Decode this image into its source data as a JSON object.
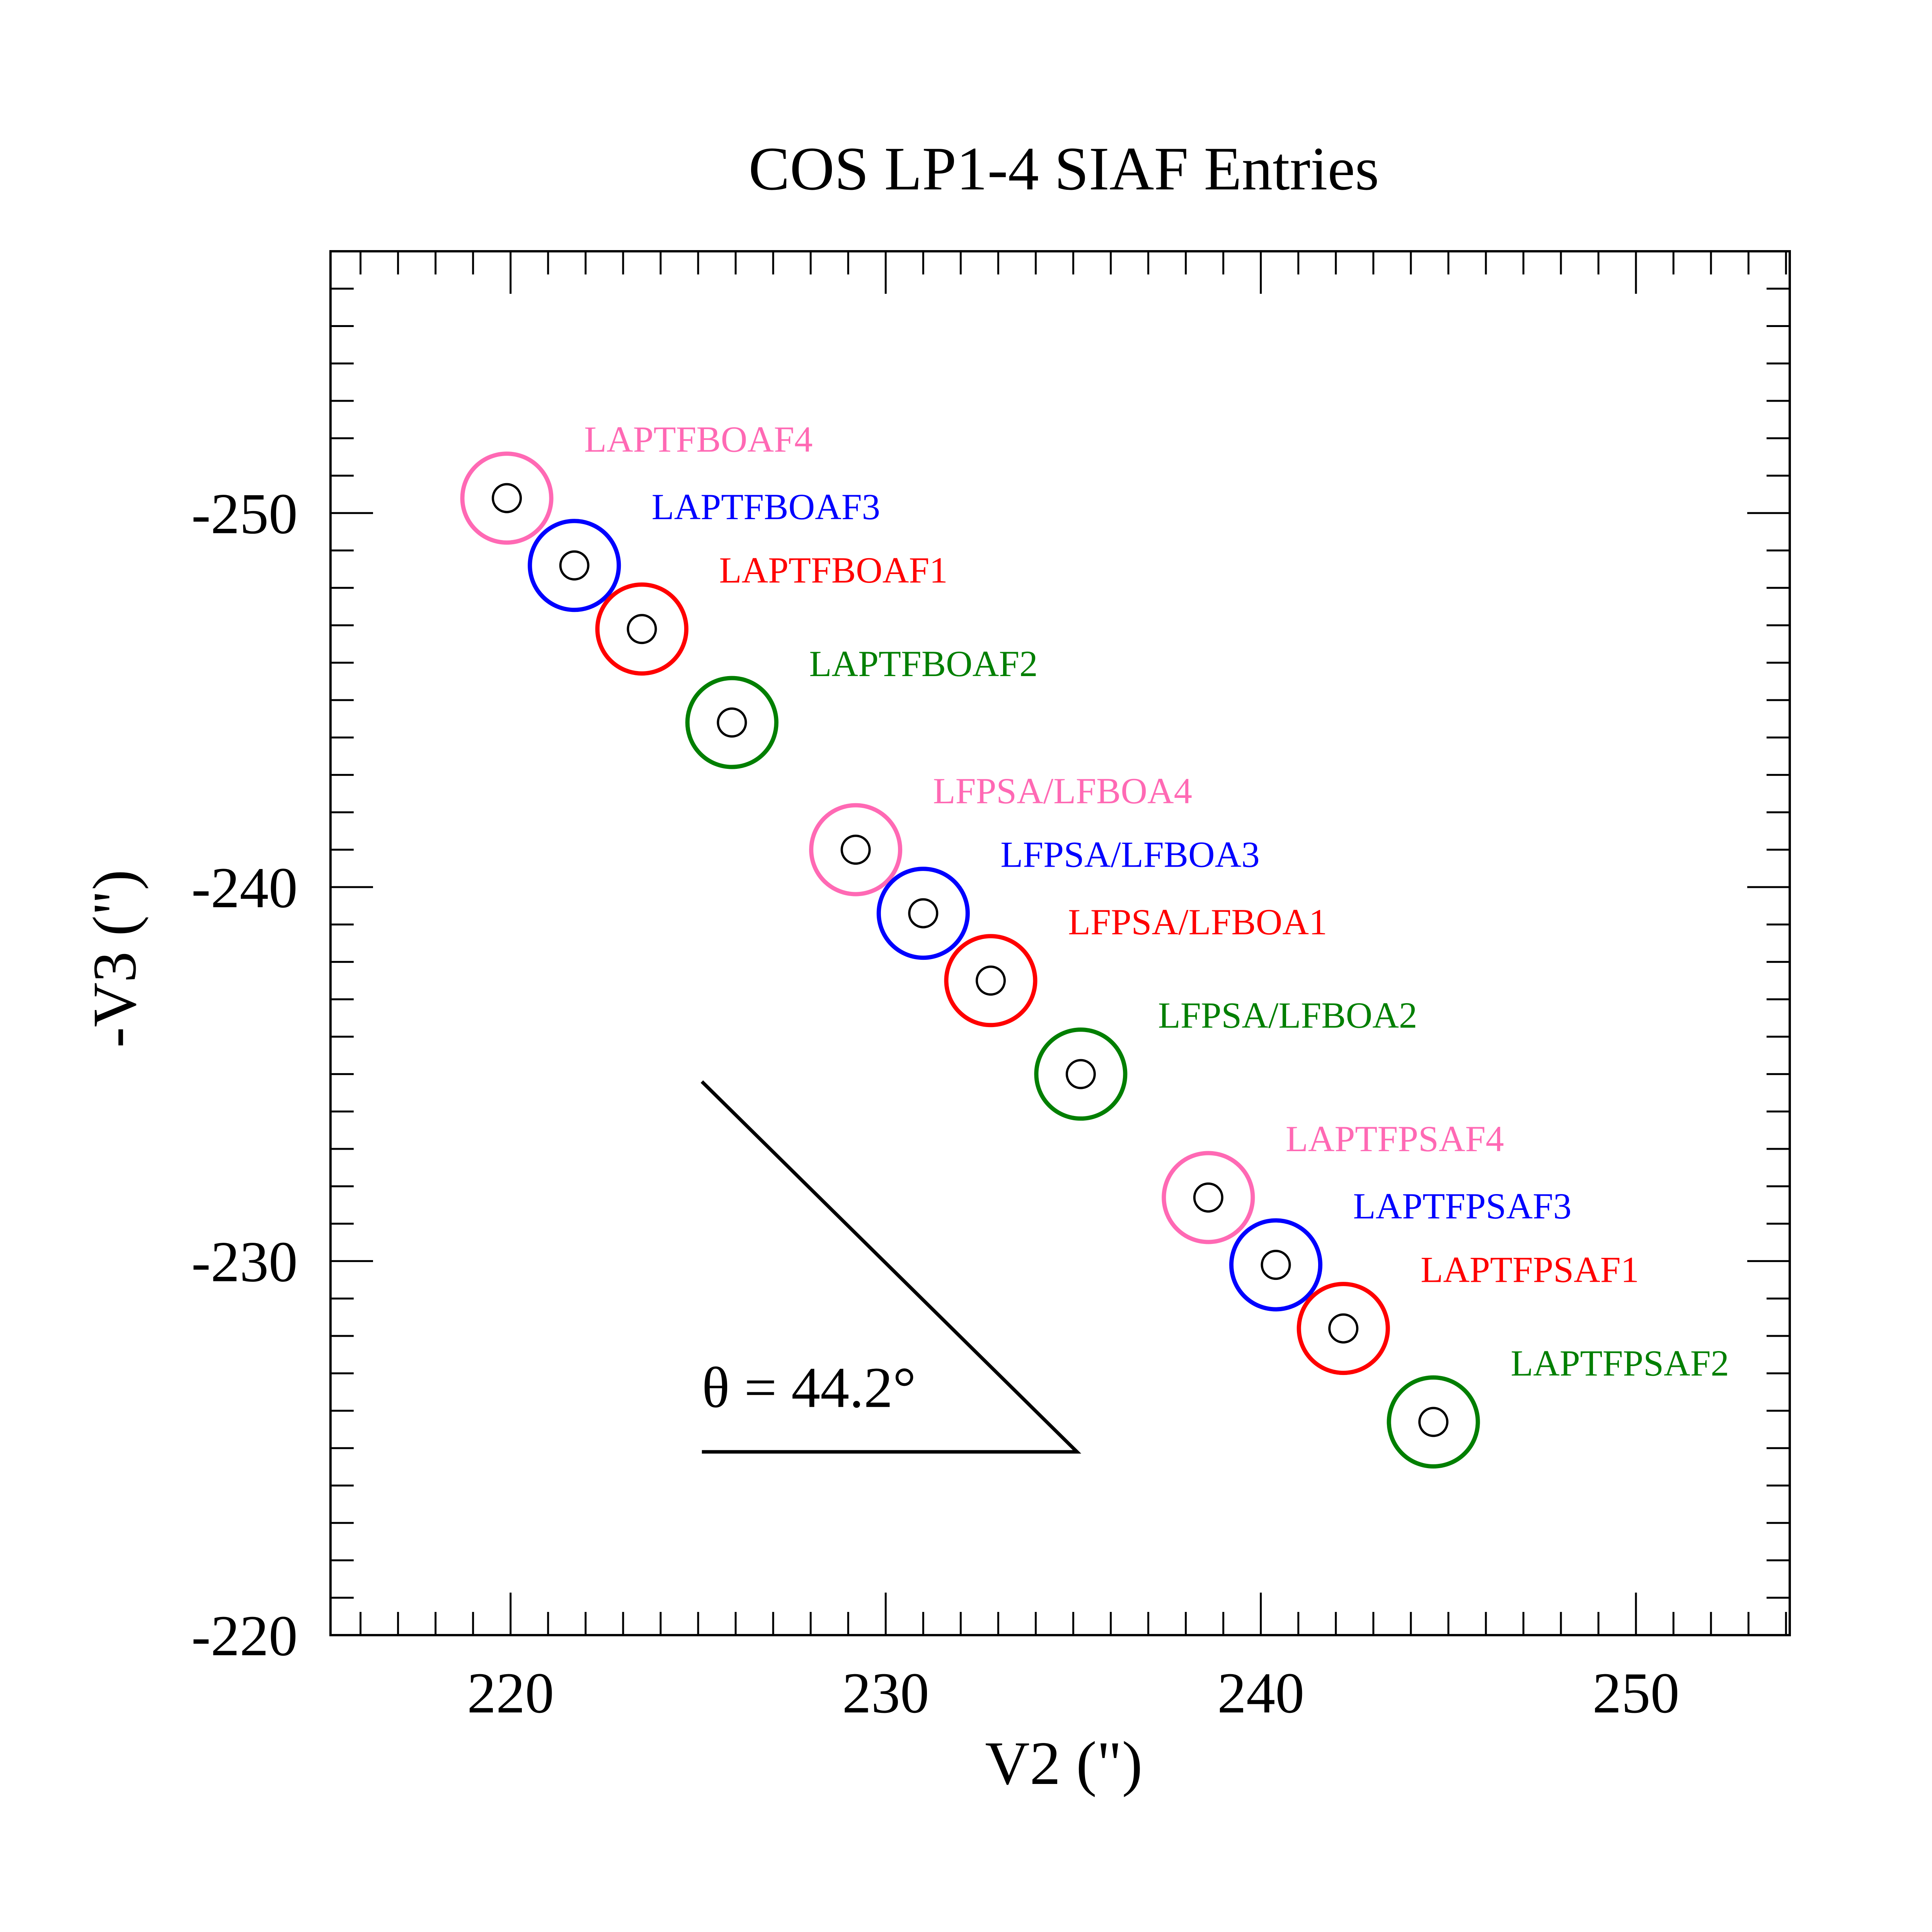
{
  "chart_data": {
    "type": "scatter",
    "title": "COS LP1-4 SIAF Entries",
    "xlabel": "V2 (\")",
    "ylabel": "-V3 (\")",
    "xlim": [
      215.2,
      254.1
    ],
    "ylim": [
      -257.0,
      -220.0
    ],
    "x_ticks": [
      220,
      230,
      240,
      250
    ],
    "y_ticks": [
      -250,
      -240,
      -230,
      -220
    ],
    "x_minor_step": 1,
    "y_minor_step": 1,
    "grid": false,
    "series": [
      {
        "name": "LAPTFBOAF4",
        "x": 219.9,
        "y": -250.4,
        "color": "#ff69b4"
      },
      {
        "name": "LAPTFBOAF3",
        "x": 221.7,
        "y": -248.6,
        "color": "#0000ff"
      },
      {
        "name": "LAPTFBOAF1",
        "x": 223.5,
        "y": -246.9,
        "color": "#ff0000"
      },
      {
        "name": "LAPTFBOAF2",
        "x": 225.9,
        "y": -244.4,
        "color": "#007f00"
      },
      {
        "name": "LFPSA/LFBOA4",
        "x": 229.2,
        "y": -241.0,
        "color": "#ff69b4"
      },
      {
        "name": "LFPSA/LFBOA3",
        "x": 231.0,
        "y": -239.3,
        "color": "#0000ff"
      },
      {
        "name": "LFPSA/LFBOA1",
        "x": 232.8,
        "y": -237.5,
        "color": "#ff0000"
      },
      {
        "name": "LFPSA/LFBOA2",
        "x": 235.2,
        "y": -235.0,
        "color": "#007f00"
      },
      {
        "name": "LAPTFPSAF4",
        "x": 238.6,
        "y": -231.7,
        "color": "#ff69b4"
      },
      {
        "name": "LAPTFPSAF3",
        "x": 240.4,
        "y": -229.9,
        "color": "#0000ff"
      },
      {
        "name": "LAPTFPSAF1",
        "x": 242.2,
        "y": -228.2,
        "color": "#ff0000"
      },
      {
        "name": "LAPTFPSAF2",
        "x": 244.6,
        "y": -225.7,
        "color": "#007f00"
      }
    ],
    "annotations": [
      {
        "text": "θ = 44.2°"
      }
    ],
    "angle_line": [
      [
        225.1,
        -234.8
      ],
      [
        235.1,
        -224.9
      ],
      [
        225.1,
        -224.9
      ]
    ]
  }
}
